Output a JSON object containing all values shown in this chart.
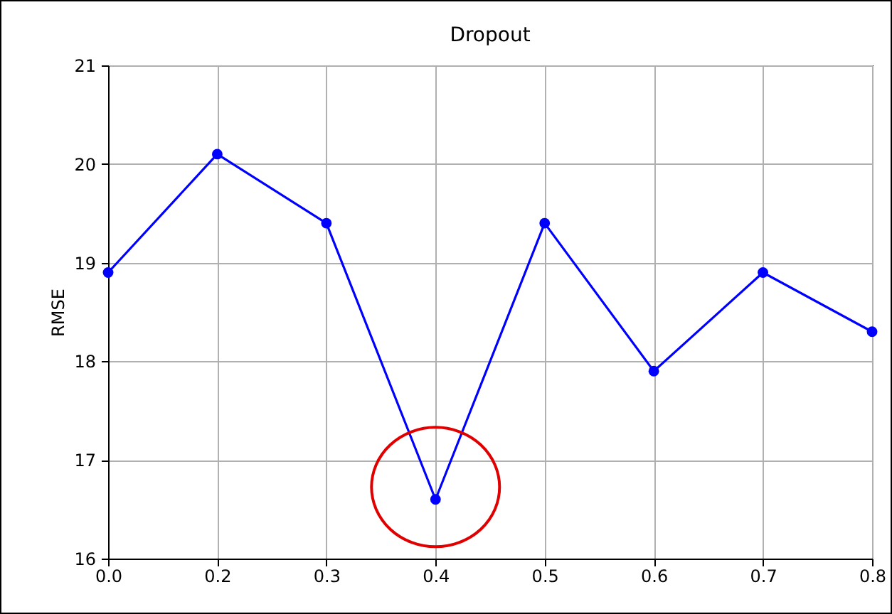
{
  "chart_data": {
    "type": "line",
    "title": "Dropout",
    "ylabel": "RMSE",
    "categories": [
      "0.0",
      "0.2",
      "0.3",
      "0.4",
      "0.5",
      "0.6",
      "0.7",
      "0.8"
    ],
    "series": [
      {
        "color": "#0000ff",
        "values": [
          18.9,
          20.1,
          19.4,
          16.6,
          19.4,
          17.9,
          18.9,
          18.3
        ]
      }
    ],
    "ylim": [
      16,
      21
    ],
    "yticks": [
      16,
      17,
      18,
      19,
      20,
      21
    ],
    "grid": true,
    "marker": "circle",
    "line_style": "solid"
  }
}
